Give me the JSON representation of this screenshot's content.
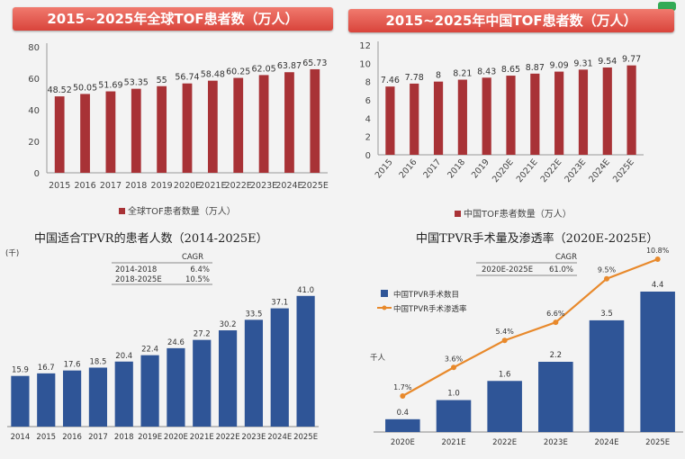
{
  "chart_data": [
    {
      "type": "bar",
      "title": "2015~2025年全球TOF患者数（万人）",
      "legend": "全球TOF患者数量（万人）",
      "categories": [
        "2015",
        "2016",
        "2017",
        "2018",
        "2019",
        "2020E",
        "2021E",
        "2022E",
        "2023E",
        "2024E",
        "2025E"
      ],
      "values": [
        48.52,
        50.05,
        51.69,
        53.35,
        55,
        56.74,
        58.48,
        60.25,
        62.05,
        63.87,
        65.73
      ],
      "value_labels": [
        "48.52",
        "50.05",
        "51.69",
        "53.35",
        "55",
        "56.74",
        "58.48",
        "60.25",
        "62.05",
        "63.87",
        "65.73"
      ],
      "ylim": [
        0,
        80
      ],
      "yticks": [
        "0",
        "20",
        "40",
        "60",
        "80"
      ],
      "grid": false,
      "legend_position": "bottom",
      "color": "#a83236"
    },
    {
      "type": "bar",
      "title": "2015~2025年中国TOF患者数（万人）",
      "legend": "中国TOF患者数量（万人）",
      "categories": [
        "2015",
        "2016",
        "2017",
        "2018",
        "2019",
        "2020E",
        "2021E",
        "2022E",
        "2023E",
        "2024E",
        "2025E"
      ],
      "values": [
        7.46,
        7.78,
        8,
        8.21,
        8.43,
        8.65,
        8.87,
        9.09,
        9.31,
        9.54,
        9.77
      ],
      "value_labels": [
        "7.46",
        "7.78",
        "8",
        "8.21",
        "8.43",
        "8.65",
        "8.87",
        "9.09",
        "9.31",
        "9.54",
        "9.77"
      ],
      "ylim": [
        0,
        12
      ],
      "yticks": [
        "0",
        "2",
        "4",
        "6",
        "8",
        "10",
        "12"
      ],
      "grid": false,
      "legend_position": "bottom",
      "color": "#a83236"
    },
    {
      "type": "bar",
      "title": "中国适合TPVR的患者人数（2014-2025E）",
      "unit": "(千)",
      "categories": [
        "2014",
        "2015",
        "2016",
        "2017",
        "2018",
        "2019E",
        "2020E",
        "2021E",
        "2022E",
        "2023E",
        "2024E",
        "2025E"
      ],
      "values": [
        15.9,
        16.7,
        17.6,
        18.5,
        20.4,
        22.4,
        24.6,
        27.2,
        30.2,
        33.5,
        37.1,
        41.0
      ],
      "value_labels": [
        "15.9",
        "16.7",
        "17.6",
        "18.5",
        "20.4",
        "22.4",
        "24.6",
        "27.2",
        "30.2",
        "33.5",
        "37.1",
        "41.0"
      ],
      "ylim": [
        0,
        48
      ],
      "cagr_table": {
        "header": "CAGR",
        "rows": [
          {
            "period": "2014-2018",
            "value": "6.4%"
          },
          {
            "period": "2018-2025E",
            "value": "10.5%"
          }
        ]
      },
      "color": "#2f5597"
    },
    {
      "type": "bar",
      "title": "中国TPVR手术量及渗透率（2020E-2025E）",
      "unit": "千人",
      "categories": [
        "2020E",
        "2021E",
        "2022E",
        "2023E",
        "2024E",
        "2025E"
      ],
      "series": [
        {
          "name": "中国TPVR手术数目",
          "values": [
            0.4,
            1.0,
            1.6,
            2.2,
            3.5,
            4.4
          ],
          "labels": [
            "0.4",
            "1.0",
            "1.6",
            "2.2",
            "3.5",
            "4.4"
          ],
          "color": "#2f5597"
        },
        {
          "name": "中国TPVR手术渗透率",
          "type": "line",
          "values": [
            1.7,
            3.6,
            5.4,
            6.6,
            9.5,
            10.8
          ],
          "labels": [
            "1.7%",
            "3.6%",
            "5.4%",
            "6.6%",
            "9.5%",
            "10.8%"
          ],
          "color": "#e8892b"
        }
      ],
      "cagr_table": {
        "header": "CAGR",
        "rows": [
          {
            "period": "2020E-2025E",
            "value": "61.0%"
          }
        ]
      }
    }
  ]
}
